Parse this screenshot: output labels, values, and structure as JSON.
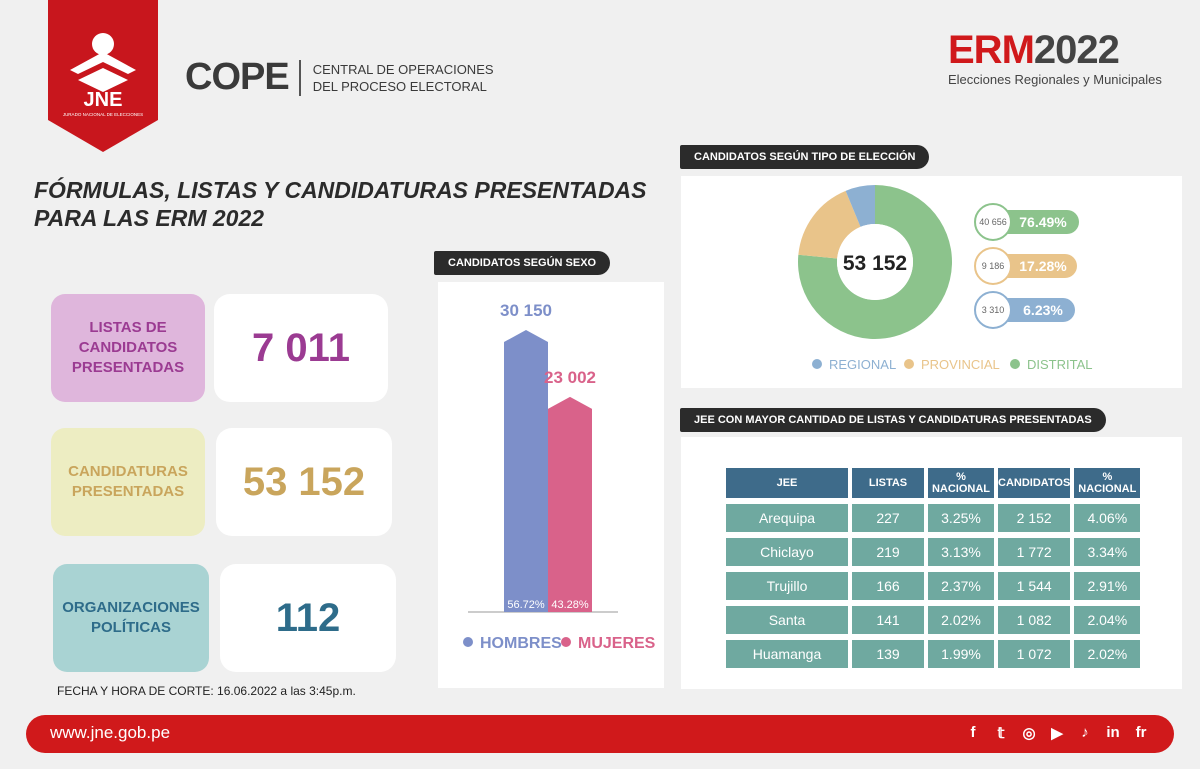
{
  "header": {
    "logo_text": "JNE",
    "logo_subtext": "JURADO NACIONAL DE ELECCIONES",
    "cope_word": "COPE",
    "cope_line1": "CENTRAL DE OPERACIONES",
    "cope_line2": "DEL PROCESO ELECTORAL",
    "erm_prefix": "ERM",
    "erm_year": "2022",
    "erm_subtitle": "Elecciones Regionales y Municipales"
  },
  "title_line1": "FÓRMULAS, LISTAS Y CANDIDATURAS PRESENTADAS",
  "title_line2": "PARA LAS ERM 2022",
  "stats": [
    {
      "label_line1": "LISTAS DE CANDIDATOS",
      "label_line2": "PRESENTADAS",
      "value": "7 011",
      "bg": "#dfb6dc",
      "fg": "#9b3b92"
    },
    {
      "label_line1": "CANDIDATURAS",
      "label_line2": "PRESENTADAS",
      "value": "53 152",
      "bg": "#ededc2",
      "fg": "#c9a55c"
    },
    {
      "label_line1": "ORGANIZACIONES",
      "label_line2": "POLÍTICAS",
      "value": "112",
      "bg": "#a9d3d3",
      "fg": "#2e6c8a"
    }
  ],
  "footnote": "FECHA Y HORA DE CORTE: 16.06.2022 a las 3:45p.m.",
  "sex_chart_title": "CANDIDATOS SEGÚN SEXO",
  "type_chart_title": "CANDIDATOS SEGÚN TIPO DE ELECCIÓN",
  "jee_table_title": "JEE CON MAYOR CANTIDAD DE LISTAS Y CANDIDATURAS PRESENTADAS",
  "chart_data": [
    {
      "type": "bar",
      "title": "CANDIDATOS SEGÚN SEXO",
      "categories": [
        "HOMBRES",
        "MUJERES"
      ],
      "values": [
        30150,
        23002
      ],
      "value_labels": [
        "30 150",
        "23 002"
      ],
      "percent_labels": [
        "56.72%",
        "43.28%"
      ],
      "colors": [
        "#7d8fc9",
        "#d9628a"
      ]
    },
    {
      "type": "pie",
      "title": "CANDIDATOS SEGÚN TIPO DE ELECCIÓN",
      "center_label": "53 152",
      "categories": [
        "DISTRITAL",
        "PROVINCIAL",
        "REGIONAL"
      ],
      "values": [
        40656,
        9186,
        3310
      ],
      "value_labels": [
        "40 656",
        "9 186",
        "3 310"
      ],
      "percent_labels": [
        "76.49%",
        "17.28%",
        "6.23%"
      ],
      "colors": [
        "#8cc38c",
        "#e9c48a",
        "#8db0d2"
      ],
      "legend_order": [
        "REGIONAL",
        "PROVINCIAL",
        "DISTRITAL"
      ]
    },
    {
      "type": "table",
      "title": "JEE CON MAYOR CANTIDAD DE LISTAS Y CANDIDATURAS PRESENTADAS",
      "columns": [
        "JEE",
        "LISTAS",
        "% NACIONAL",
        "CANDIDATOS",
        "% NACIONAL"
      ],
      "rows": [
        [
          "Arequipa",
          "227",
          "3.25%",
          "2 152",
          "4.06%"
        ],
        [
          "Chiclayo",
          "219",
          "3.13%",
          "1 772",
          "3.34%"
        ],
        [
          "Trujillo",
          "166",
          "2.37%",
          "1 544",
          "2.91%"
        ],
        [
          "Santa",
          "141",
          "2.02%",
          "1 082",
          "2.04%"
        ],
        [
          "Huamanga",
          "139",
          "1.99%",
          "1 072",
          "2.02%"
        ]
      ]
    }
  ],
  "footer": {
    "url": "www.jne.gob.pe",
    "social": [
      "f",
      "𝕥",
      "◎",
      "▶",
      "♪",
      "in",
      "fr"
    ],
    "social_icons": [
      "facebook-icon",
      "twitter-icon",
      "instagram-icon",
      "youtube-icon",
      "tiktok-icon",
      "linkedin-icon",
      "flickr-icon"
    ]
  }
}
